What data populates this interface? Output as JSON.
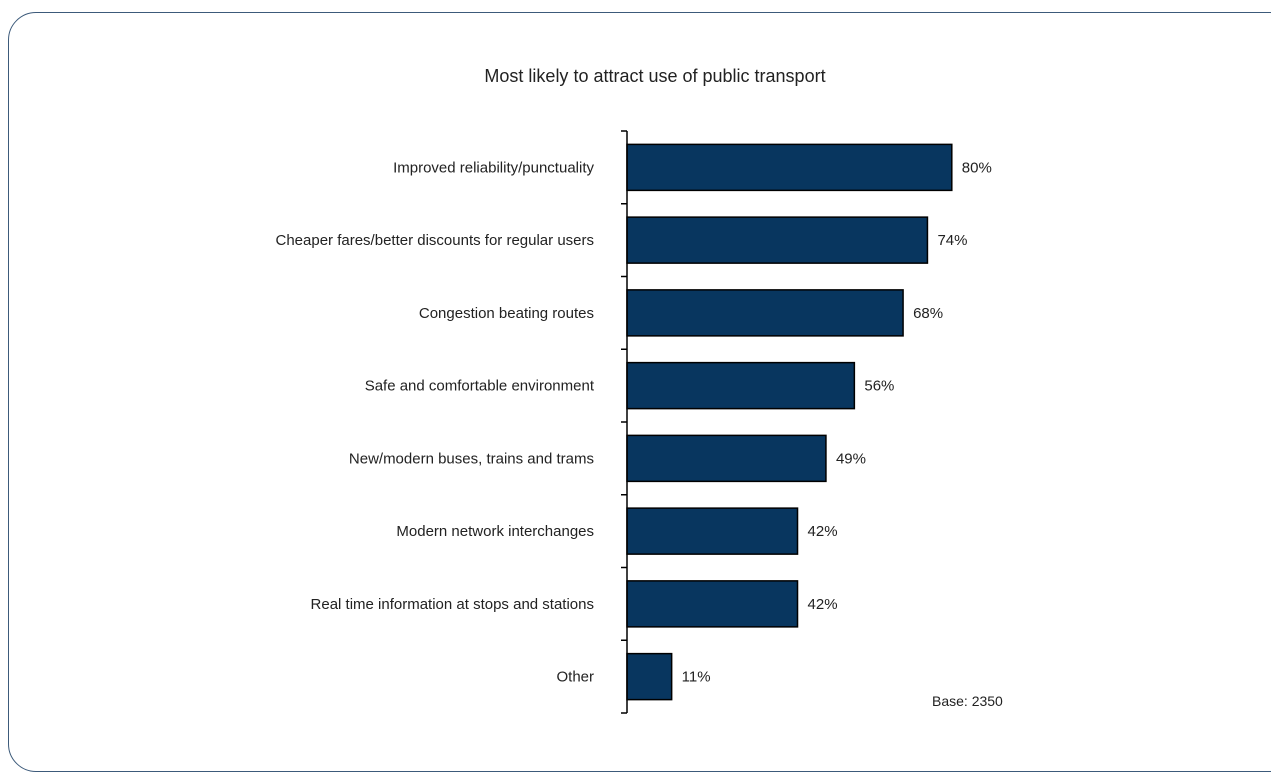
{
  "chart_data": {
    "type": "bar",
    "orientation": "horizontal",
    "title": "Most likely to attract use of public transport",
    "categories": [
      "Improved reliability/punctuality",
      "Cheaper fares/better discounts for regular users",
      "Congestion beating routes",
      "Safe and comfortable environment",
      "New/modern buses, trains and trams",
      "Modern network interchanges",
      "Real time information at stops and stations",
      "Other"
    ],
    "values": [
      80,
      74,
      68,
      56,
      49,
      42,
      42,
      11
    ],
    "value_labels": [
      "80%",
      "74%",
      "68%",
      "56%",
      "49%",
      "42%",
      "42%",
      "11%"
    ],
    "xlim": [
      0,
      100
    ],
    "grid": false,
    "bar_color": "#08365f",
    "note": "Base:  2350"
  }
}
